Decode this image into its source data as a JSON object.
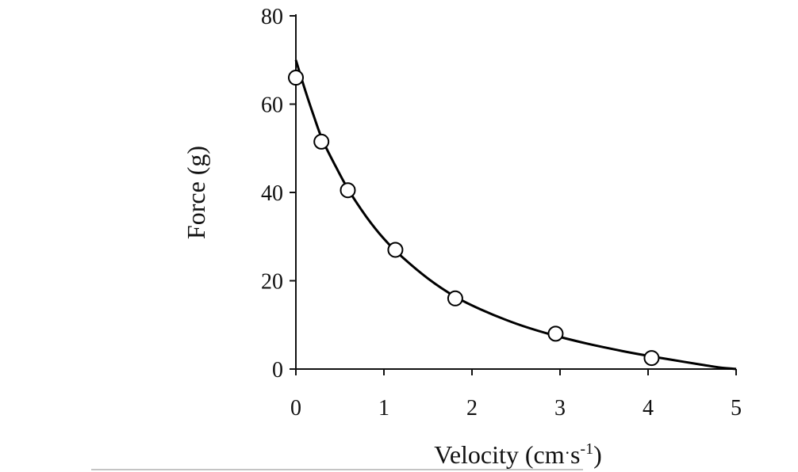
{
  "chart_data": {
    "type": "scatter",
    "xlabel": "Velocity (cm·s-1)",
    "xlabel_parts": {
      "main": "Velocity (cm",
      "dot": "·",
      "s": "s",
      "sup": "-1",
      "close": ")"
    },
    "ylabel": "Force (g)",
    "xlim": [
      0,
      5
    ],
    "ylim": [
      0,
      80
    ],
    "x_ticks": [
      "0",
      "1",
      "2",
      "3",
      "4",
      "5"
    ],
    "y_ticks": [
      "0",
      "20",
      "40",
      "60",
      "80"
    ],
    "grid": false,
    "legend": "none",
    "series": [
      {
        "marker": "open-circle",
        "points": [
          {
            "x": 0.0,
            "y": 66
          },
          {
            "x": 0.29,
            "y": 51.5
          },
          {
            "x": 0.59,
            "y": 40.5
          },
          {
            "x": 1.13,
            "y": 27
          },
          {
            "x": 1.81,
            "y": 16
          },
          {
            "x": 2.95,
            "y": 8
          },
          {
            "x": 4.04,
            "y": 2.5
          }
        ]
      }
    ],
    "fit_curve": {
      "style": "solid black line",
      "points": [
        {
          "x": 0.0,
          "y": 70
        },
        {
          "x": 0.1,
          "y": 63.5
        },
        {
          "x": 0.2,
          "y": 57.5
        },
        {
          "x": 0.3,
          "y": 52.0
        },
        {
          "x": 0.45,
          "y": 46.0
        },
        {
          "x": 0.6,
          "y": 40.5
        },
        {
          "x": 0.8,
          "y": 34.5
        },
        {
          "x": 1.0,
          "y": 29.5
        },
        {
          "x": 1.2,
          "y": 25.5
        },
        {
          "x": 1.5,
          "y": 20.5
        },
        {
          "x": 1.8,
          "y": 16.5
        },
        {
          "x": 2.1,
          "y": 13.5
        },
        {
          "x": 2.5,
          "y": 10.3
        },
        {
          "x": 2.9,
          "y": 7.8
        },
        {
          "x": 3.3,
          "y": 5.8
        },
        {
          "x": 3.7,
          "y": 4.1
        },
        {
          "x": 4.0,
          "y": 3.0
        },
        {
          "x": 4.3,
          "y": 2.0
        },
        {
          "x": 4.6,
          "y": 1.0
        },
        {
          "x": 4.8,
          "y": 0.4
        },
        {
          "x": 5.0,
          "y": 0.0
        }
      ]
    }
  }
}
